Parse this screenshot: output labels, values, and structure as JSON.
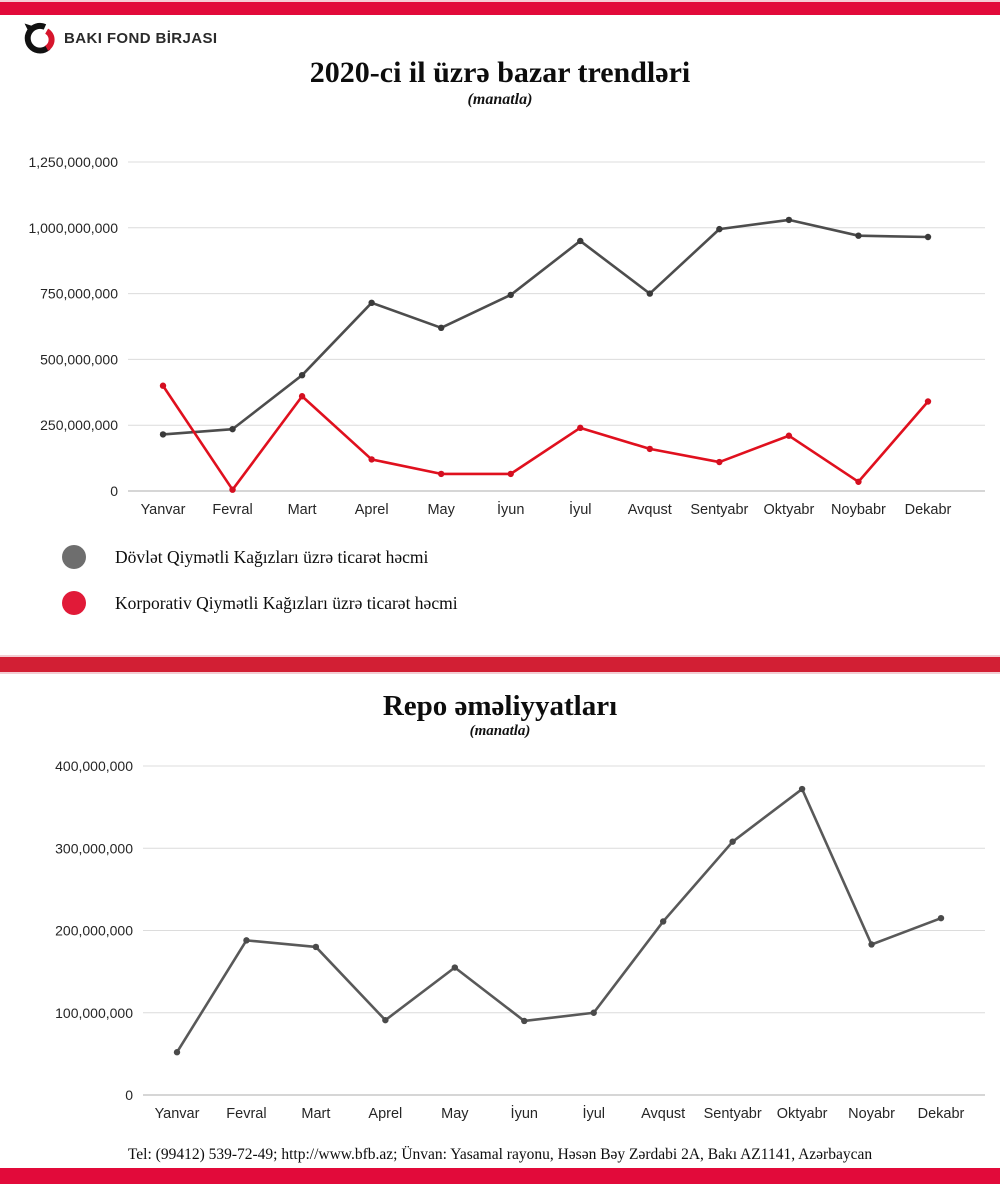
{
  "brand": {
    "logo_text": "BAKI FOND BİRJASI",
    "bar_color": "#e20a3a"
  },
  "chart_data": [
    {
      "type": "line",
      "title": "2020-ci il üzrə bazar trendləri",
      "subtitle": "(manatla)",
      "categories": [
        "Yanvar",
        "Fevral",
        "Mart",
        "Aprel",
        "May",
        "İyun",
        "İyul",
        "Avqust",
        "Sentyabr",
        "Oktyabr",
        "Noybabr",
        "Dekabr"
      ],
      "series": [
        {
          "name": "Dövlət Qiymətli Kağızları üzrə ticarət həcmi",
          "color": "#4d4d4d",
          "marker_color": "#3a3a3a",
          "values": [
            215000000,
            235000000,
            440000000,
            715000000,
            620000000,
            745000000,
            950000000,
            750000000,
            995000000,
            1030000000,
            970000000,
            965000000
          ]
        },
        {
          "name": "Korporativ Qiymətli Kağızları üzrə ticarət həcmi",
          "color": "#e0101e",
          "marker_color": "#d40f20",
          "values": [
            400000000,
            5000000,
            360000000,
            120000000,
            65000000,
            65000000,
            240000000,
            160000000,
            110000000,
            210000000,
            35000000,
            340000000
          ]
        }
      ],
      "ylim": [
        0,
        1250000000
      ],
      "yticks": [
        0,
        250000000,
        500000000,
        750000000,
        1000000000,
        1250000000
      ],
      "ytick_labels": [
        "0",
        "250,000,000",
        "500,000,000",
        "750,000,000",
        "1,000,000,000",
        "1,250,000,000"
      ],
      "grid": true,
      "legend_position": "below-left"
    },
    {
      "type": "line",
      "title": "Repo əməliyyatları",
      "subtitle": "(manatla)",
      "categories": [
        "Yanvar",
        "Fevral",
        "Mart",
        "Aprel",
        "May",
        "İyun",
        "İyul",
        "Avqust",
        "Sentyabr",
        "Oktyabr",
        "Noyabr",
        "Dekabr"
      ],
      "series": [
        {
          "name": "Repo əməliyyatları",
          "color": "#595959",
          "marker_color": "#4a4a4a",
          "values": [
            52000000,
            188000000,
            180000000,
            91000000,
            155000000,
            90000000,
            100000000,
            211000000,
            308000000,
            372000000,
            183000000,
            215000000
          ]
        }
      ],
      "ylim": [
        0,
        400000000
      ],
      "yticks": [
        0,
        100000000,
        200000000,
        300000000,
        400000000
      ],
      "ytick_labels": [
        "0",
        "100,000,000",
        "200,000,000",
        "300,000,000",
        "400,000,000"
      ],
      "grid": true,
      "legend_position": "none"
    }
  ],
  "legend": {
    "items": [
      {
        "label": "Dövlət Qiymətli Kağızları üzrə ticarət həcmi",
        "color": "#6e6e6e"
      },
      {
        "label": "Korporativ Qiymətli Kağızları üzrə ticarət həcmi",
        "color": "#e11a38"
      }
    ]
  },
  "footer": {
    "text": "Tel: (99412) 539-72-49; http://www.bfb.az; Ünvan: Yasamal rayonu, Həsən Bəy Zərdabi 2A, Bakı AZ1141, Azərbaycan"
  }
}
